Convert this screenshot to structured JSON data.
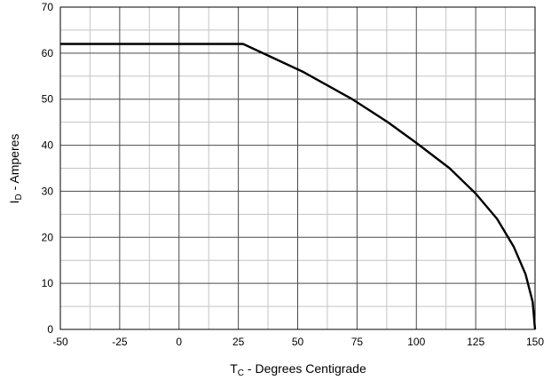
{
  "chart_data": {
    "type": "line",
    "xlabel": {
      "main": "T",
      "sub": "C",
      "rest": " - Degrees Centigrade"
    },
    "ylabel": {
      "main": "I",
      "sub": "D",
      "rest": " - Amperes"
    },
    "xlim": [
      -50,
      150
    ],
    "ylim": [
      0,
      70
    ],
    "x_ticks": [
      "-50",
      "-25",
      "0",
      "25",
      "50",
      "75",
      "100",
      "125",
      "150"
    ],
    "y_ticks": [
      "0",
      "10",
      "20",
      "30",
      "40",
      "50",
      "60",
      "70"
    ],
    "grid": true,
    "series": [
      {
        "x": [
          -50,
          27,
          52,
          73,
          88,
          100,
          114,
          125,
          134,
          141,
          146,
          149,
          150
        ],
        "y": [
          62,
          62,
          56,
          50,
          45,
          40.5,
          35,
          29.5,
          24,
          18,
          12,
          6,
          0
        ]
      }
    ]
  }
}
